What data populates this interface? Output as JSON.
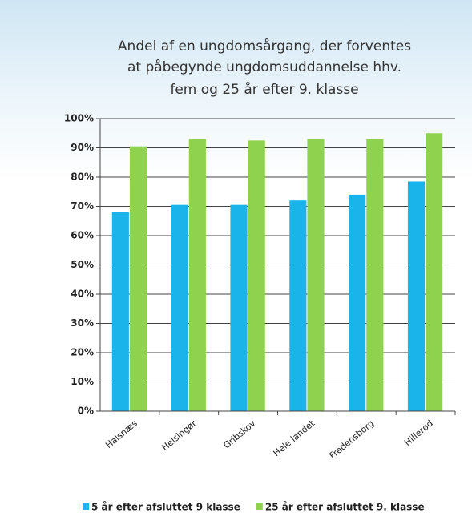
{
  "chart_data": {
    "type": "bar",
    "title": [
      "Andel af en ungdomsårgang, der forventes",
      "at påbegynde ungdomsuddannelse hhv.",
      "fem og 25 år efter 9. klasse"
    ],
    "categories": [
      "Halsnæs",
      "Helsingør",
      "Gribskov",
      "Hele landet",
      "Fredensborg",
      "Hillerød"
    ],
    "series": [
      {
        "name": "5 år efter afsluttet 9 klasse",
        "color": "#1ab4ea",
        "values": [
          68,
          70.5,
          70.5,
          72,
          74,
          78.5
        ]
      },
      {
        "name": "25 år efter afsluttet 9. klasse",
        "color": "#8fd24e",
        "values": [
          90.5,
          93,
          92.5,
          93,
          93,
          95
        ]
      }
    ],
    "ylim": [
      0,
      100
    ],
    "yticks": [
      {
        "value": 0,
        "label": "0%"
      },
      {
        "value": 10,
        "label": "10%"
      },
      {
        "value": 20,
        "label": "20%"
      },
      {
        "value": 30,
        "label": "30%"
      },
      {
        "value": 40,
        "label": "40%"
      },
      {
        "value": 50,
        "label": "50%"
      },
      {
        "value": 60,
        "label": "60%"
      },
      {
        "value": 70,
        "label": "70%"
      },
      {
        "value": 80,
        "label": "80%"
      },
      {
        "value": 90,
        "label": "90%"
      },
      {
        "value": 100,
        "label": "100%"
      }
    ],
    "grid": true,
    "legend": "bottom"
  }
}
